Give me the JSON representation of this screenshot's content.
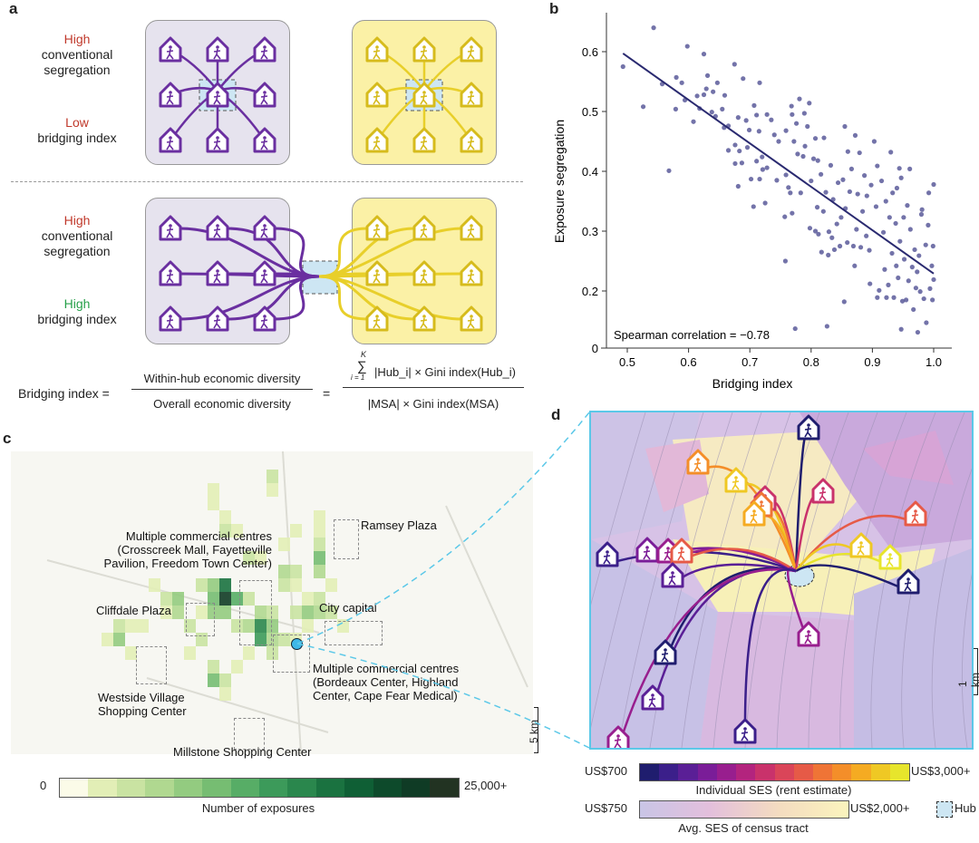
{
  "panel_labels": {
    "a": "a",
    "b": "b",
    "c": "c",
    "d": "d"
  },
  "panel_a": {
    "top": {
      "line1": "High",
      "line2": "conventional segregation",
      "line3": "Low",
      "line4": "bridging index"
    },
    "bottom": {
      "line1": "High",
      "line2": "conventional segregation",
      "line3": "High",
      "line4": "bridging index"
    },
    "colors": {
      "purple": "#6a2fa0",
      "yellow": "#e8cf2a",
      "box_gray": "#e6e3ee",
      "box_yellow": "#fbf1a6",
      "hub": "#cde6f3"
    }
  },
  "formula": {
    "lhs": "Bridging index =",
    "num1": "Within-hub economic diversity",
    "den1": "Overall economic diversity",
    "eq": "=",
    "sum_top": "K",
    "sum_sym": "∑",
    "sum_bottom": "i = 1",
    "num2": "|Hub_i| × Gini index(Hub_i)",
    "den2": "|MSA| × Gini index(MSA)"
  },
  "chart_data": {
    "type": "scatter",
    "title": "",
    "xlabel": "Bridging index",
    "ylabel": "Exposure segregation",
    "xlim": [
      0.47,
      1.03
    ],
    "ylim": [
      0.105,
      0.66
    ],
    "xticks": [
      "0.5",
      "0.6",
      "0.7",
      "0.8",
      "0.9",
      "1.0"
    ],
    "yticks": [
      "0",
      "0.2",
      "0.3",
      "0.4",
      "0.5",
      "0.6"
    ],
    "annotation": "Spearman correlation = −0.78",
    "point_color": "#5b5b9a",
    "line_color": "#2a2a70",
    "fit_line": [
      [
        0.493,
        0.597
      ],
      [
        1.0,
        0.229
      ]
    ],
    "points": [
      [
        0.493,
        0.575
      ],
      [
        0.543,
        0.64
      ],
      [
        0.526,
        0.508
      ],
      [
        0.557,
        0.546
      ],
      [
        0.568,
        0.401
      ],
      [
        0.579,
        0.504
      ],
      [
        0.58,
        0.557
      ],
      [
        0.589,
        0.548
      ],
      [
        0.594,
        0.519
      ],
      [
        0.598,
        0.609
      ],
      [
        0.608,
        0.483
      ],
      [
        0.614,
        0.526
      ],
      [
        0.618,
        0.505
      ],
      [
        0.625,
        0.528
      ],
      [
        0.625,
        0.596
      ],
      [
        0.629,
        0.538
      ],
      [
        0.631,
        0.56
      ],
      [
        0.638,
        0.499
      ],
      [
        0.64,
        0.533
      ],
      [
        0.644,
        0.492
      ],
      [
        0.647,
        0.548
      ],
      [
        0.655,
        0.504
      ],
      [
        0.658,
        0.473
      ],
      [
        0.659,
        0.527
      ],
      [
        0.665,
        0.476
      ],
      [
        0.665,
        0.435
      ],
      [
        0.675,
        0.579
      ],
      [
        0.676,
        0.444
      ],
      [
        0.676,
        0.413
      ],
      [
        0.681,
        0.49
      ],
      [
        0.681,
        0.375
      ],
      [
        0.683,
        0.434
      ],
      [
        0.687,
        0.414
      ],
      [
        0.689,
        0.555
      ],
      [
        0.694,
        0.485
      ],
      [
        0.696,
        0.44
      ],
      [
        0.699,
        0.469
      ],
      [
        0.702,
        0.387
      ],
      [
        0.706,
        0.341
      ],
      [
        0.707,
        0.51
      ],
      [
        0.711,
        0.494
      ],
      [
        0.711,
        0.417
      ],
      [
        0.715,
        0.467
      ],
      [
        0.716,
        0.548
      ],
      [
        0.716,
        0.387
      ],
      [
        0.72,
        0.424
      ],
      [
        0.721,
        0.403
      ],
      [
        0.725,
        0.347
      ],
      [
        0.728,
        0.495
      ],
      [
        0.728,
        0.406
      ],
      [
        0.735,
        0.486
      ],
      [
        0.74,
        0.461
      ],
      [
        0.744,
        0.385
      ],
      [
        0.747,
        0.45
      ],
      [
        0.757,
        0.324
      ],
      [
        0.758,
        0.25
      ],
      [
        0.759,
        0.468
      ],
      [
        0.759,
        0.394
      ],
      [
        0.763,
        0.373
      ],
      [
        0.766,
        0.364
      ],
      [
        0.768,
        0.509
      ],
      [
        0.769,
        0.33
      ],
      [
        0.769,
        0.495
      ],
      [
        0.772,
        0.45
      ],
      [
        0.774,
        0.137
      ],
      [
        0.776,
        0.48
      ],
      [
        0.778,
        0.429
      ],
      [
        0.781,
        0.521
      ],
      [
        0.783,
        0.364
      ],
      [
        0.787,
        0.425
      ],
      [
        0.789,
        0.497
      ],
      [
        0.79,
        0.442
      ],
      [
        0.794,
        0.475
      ],
      [
        0.797,
        0.514
      ],
      [
        0.798,
        0.305
      ],
      [
        0.8,
        0.384
      ],
      [
        0.804,
        0.421
      ],
      [
        0.807,
        0.455
      ],
      [
        0.807,
        0.3
      ],
      [
        0.81,
        0.34
      ],
      [
        0.811,
        0.418
      ],
      [
        0.812,
        0.295
      ],
      [
        0.816,
        0.395
      ],
      [
        0.817,
        0.265
      ],
      [
        0.82,
        0.333
      ],
      [
        0.821,
        0.456
      ],
      [
        0.824,
        0.365
      ],
      [
        0.826,
        0.141
      ],
      [
        0.828,
        0.26
      ],
      [
        0.829,
        0.299
      ],
      [
        0.832,
        0.41
      ],
      [
        0.834,
        0.289
      ],
      [
        0.836,
        0.353
      ],
      [
        0.838,
        0.269
      ],
      [
        0.842,
        0.312
      ],
      [
        0.844,
        0.381
      ],
      [
        0.847,
        0.275
      ],
      [
        0.849,
        0.323
      ],
      [
        0.852,
        0.386
      ],
      [
        0.854,
        0.182
      ],
      [
        0.855,
        0.475
      ],
      [
        0.856,
        0.338
      ],
      [
        0.859,
        0.281
      ],
      [
        0.86,
        0.433
      ],
      [
        0.863,
        0.366
      ],
      [
        0.866,
        0.404
      ],
      [
        0.869,
        0.275
      ],
      [
        0.871,
        0.242
      ],
      [
        0.872,
        0.46
      ],
      [
        0.874,
        0.303
      ],
      [
        0.876,
        0.362
      ],
      [
        0.879,
        0.431
      ],
      [
        0.881,
        0.273
      ],
      [
        0.884,
        0.333
      ],
      [
        0.887,
        0.393
      ],
      [
        0.89,
        0.292
      ],
      [
        0.891,
        0.359
      ],
      [
        0.895,
        0.268
      ],
      [
        0.896,
        0.212
      ],
      [
        0.898,
        0.377
      ],
      [
        0.903,
        0.45
      ],
      [
        0.906,
        0.341
      ],
      [
        0.908,
        0.409
      ],
      [
        0.908,
        0.189
      ],
      [
        0.911,
        0.201
      ],
      [
        0.915,
        0.384
      ],
      [
        0.918,
        0.298
      ],
      [
        0.92,
        0.236
      ],
      [
        0.922,
        0.35
      ],
      [
        0.923,
        0.189
      ],
      [
        0.926,
        0.21
      ],
      [
        0.928,
        0.323
      ],
      [
        0.93,
        0.432
      ],
      [
        0.932,
        0.263
      ],
      [
        0.933,
        0.364
      ],
      [
        0.935,
        0.189
      ],
      [
        0.938,
        0.313
      ],
      [
        0.939,
        0.242
      ],
      [
        0.94,
        0.372
      ],
      [
        0.942,
        0.222
      ],
      [
        0.944,
        0.405
      ],
      [
        0.945,
        0.283
      ],
      [
        0.947,
        0.136
      ],
      [
        0.947,
        0.389
      ],
      [
        0.949,
        0.183
      ],
      [
        0.951,
        0.323
      ],
      [
        0.952,
        0.253
      ],
      [
        0.955,
        0.185
      ],
      [
        0.957,
        0.343
      ],
      [
        0.959,
        0.217
      ],
      [
        0.961,
        0.404
      ],
      [
        0.962,
        0.303
      ],
      [
        0.965,
        0.24
      ],
      [
        0.967,
        0.169
      ],
      [
        0.969,
        0.269
      ],
      [
        0.971,
        0.205
      ],
      [
        0.973,
        0.232
      ],
      [
        0.974,
        0.131
      ],
      [
        0.976,
        0.259
      ],
      [
        0.978,
        0.199
      ],
      [
        0.98,
        0.328
      ],
      [
        0.981,
        0.336
      ],
      [
        0.984,
        0.187
      ],
      [
        0.987,
        0.277
      ],
      [
        0.988,
        0.147
      ],
      [
        0.991,
        0.31
      ],
      [
        0.992,
        0.364
      ],
      [
        0.994,
        0.204
      ],
      [
        0.997,
        0.242
      ],
      [
        0.998,
        0.185
      ],
      [
        0.999,
        0.275
      ],
      [
        1.0,
        0.378
      ],
      [
        1.0,
        0.219
      ]
    ]
  },
  "panel_c": {
    "labels": {
      "ramsey": "Ramsey Plaza",
      "crosscreek": "Multiple commercial centres (Crosscreek Mall, Fayetteville Pavilion, Freedom Town Center)",
      "cliffdale": "Cliffdale Plaza",
      "city": "City capital",
      "bordeaux": "Multiple commercial centres (Bordeaux Center, Highland Center, Cape Fear Medical)",
      "westside": "Westside Village Shopping Center",
      "millstone": "Millstone Shopping Center"
    },
    "scale": "5 km",
    "legend": {
      "min": "0",
      "max": "25,000+",
      "title": "Number of exposures",
      "colors": [
        "#fbfbe8",
        "#e2eeb6",
        "#c9e3a2",
        "#b0d890",
        "#93cb80",
        "#76bd72",
        "#57ad66",
        "#3c9a5a",
        "#2a874d",
        "#1a7240",
        "#0f5f35",
        "#0d4a2b",
        "#0f3b25",
        "#223322"
      ]
    }
  },
  "panel_d": {
    "scale": "1 km",
    "ses_legend": {
      "min": "US$700",
      "max": "US$3,000+",
      "title": "Individual SES (rent estimate)",
      "colors": [
        "#1f1d6e",
        "#3b1f8a",
        "#5a1f96",
        "#7a1d98",
        "#981e8e",
        "#b3247e",
        "#c9326b",
        "#da4559",
        "#e65a47",
        "#ef7436",
        "#f48e29",
        "#f5ab22",
        "#efc824",
        "#e7e52c"
      ]
    },
    "tract_legend": {
      "min": "US$750",
      "max": "US$2,000+",
      "title": "Avg. SES of census tract",
      "hub": "Hub"
    },
    "border_color": "#5bc8e8"
  }
}
